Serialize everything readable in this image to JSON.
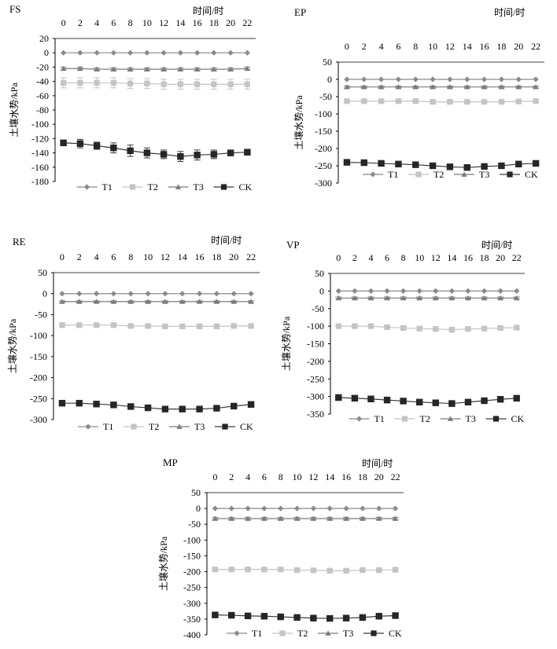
{
  "chart_data": [
    {
      "type": "line",
      "title": "FS",
      "x_title": "时间/时",
      "ylabel": "土壤水势/kPa",
      "x": [
        0,
        2,
        4,
        6,
        8,
        10,
        12,
        14,
        16,
        18,
        20,
        22
      ],
      "yticks": [
        20,
        0,
        -20,
        -40,
        -60,
        -80,
        -100,
        -120,
        -140,
        -160,
        -180
      ],
      "ylim": [
        -180,
        20
      ],
      "series": [
        {
          "name": "T1",
          "values": [
            0,
            0,
            0,
            0,
            0,
            0,
            0,
            0,
            0,
            0,
            0,
            0
          ],
          "errors": [
            0,
            0,
            0,
            0,
            0,
            0,
            0,
            0,
            0,
            0,
            0,
            0
          ]
        },
        {
          "name": "T2",
          "values": [
            -42,
            -42,
            -42,
            -42,
            -43,
            -43,
            -44,
            -44,
            -44,
            -44,
            -44,
            -44
          ],
          "errors": [
            7,
            7,
            7,
            7,
            7,
            7,
            7,
            7,
            7,
            7,
            7,
            7
          ]
        },
        {
          "name": "T3",
          "values": [
            -22,
            -22,
            -23,
            -23,
            -23,
            -23,
            -23,
            -23,
            -23,
            -23,
            -23,
            -22
          ],
          "errors": [
            2,
            2,
            2,
            2,
            2,
            2,
            2,
            2,
            2,
            2,
            2,
            2
          ]
        },
        {
          "name": "CK",
          "values": [
            -126,
            -127,
            -130,
            -133,
            -137,
            -140,
            -142,
            -145,
            -143,
            -142,
            -140,
            -139
          ],
          "errors": [
            4,
            6,
            5,
            7,
            8,
            7,
            6,
            7,
            7,
            6,
            4,
            4
          ]
        }
      ]
    },
    {
      "type": "line",
      "title": "EP",
      "x_title": "时间/时",
      "ylabel": "土壤水势/kPa",
      "x": [
        0,
        2,
        4,
        6,
        8,
        10,
        12,
        14,
        16,
        18,
        20,
        22
      ],
      "yticks": [
        50,
        0,
        -50,
        -100,
        -150,
        -200,
        -250,
        -300
      ],
      "ylim": [
        -300,
        50
      ],
      "series": [
        {
          "name": "T1",
          "values": [
            0,
            0,
            0,
            0,
            0,
            0,
            0,
            0,
            0,
            0,
            0,
            0
          ],
          "errors": [
            0,
            0,
            0,
            0,
            0,
            0,
            0,
            0,
            0,
            0,
            0,
            0
          ]
        },
        {
          "name": "T2",
          "values": [
            -63,
            -63,
            -63,
            -63,
            -63,
            -65,
            -65,
            -65,
            -65,
            -65,
            -64,
            -63
          ],
          "errors": [
            3,
            3,
            3,
            3,
            3,
            3,
            3,
            3,
            3,
            3,
            3,
            3
          ]
        },
        {
          "name": "T3",
          "values": [
            -22,
            -22,
            -22,
            -22,
            -22,
            -22,
            -22,
            -22,
            -22,
            -22,
            -22,
            -22
          ],
          "errors": [
            3,
            3,
            3,
            3,
            3,
            3,
            3,
            3,
            3,
            3,
            3,
            3
          ]
        },
        {
          "name": "CK",
          "values": [
            -240,
            -241,
            -243,
            -245,
            -247,
            -250,
            -253,
            -255,
            -252,
            -250,
            -245,
            -243
          ],
          "errors": [
            3,
            3,
            3,
            3,
            3,
            3,
            3,
            3,
            3,
            3,
            3,
            3
          ]
        }
      ]
    },
    {
      "type": "line",
      "title": "RE",
      "x_title": "时间/时",
      "ylabel": "土壤水势/kPa",
      "x": [
        0,
        2,
        4,
        6,
        8,
        10,
        12,
        14,
        16,
        18,
        20,
        22
      ],
      "yticks": [
        50,
        0,
        -50,
        -100,
        -150,
        -200,
        -250,
        -300
      ],
      "ylim": [
        -300,
        50
      ],
      "series": [
        {
          "name": "T1",
          "values": [
            0,
            0,
            0,
            0,
            0,
            0,
            0,
            0,
            0,
            0,
            0,
            0
          ],
          "errors": [
            0,
            0,
            0,
            0,
            0,
            0,
            0,
            0,
            0,
            0,
            0,
            0
          ]
        },
        {
          "name": "T2",
          "values": [
            -75,
            -75,
            -75,
            -75,
            -77,
            -77,
            -78,
            -78,
            -78,
            -78,
            -77,
            -77
          ],
          "errors": [
            3,
            3,
            3,
            3,
            3,
            3,
            3,
            3,
            3,
            3,
            3,
            3
          ]
        },
        {
          "name": "T3",
          "values": [
            -19,
            -19,
            -19,
            -19,
            -19,
            -19,
            -19,
            -19,
            -19,
            -19,
            -19,
            -19
          ],
          "errors": [
            2,
            2,
            2,
            2,
            2,
            2,
            2,
            2,
            2,
            2,
            2,
            2
          ]
        },
        {
          "name": "CK",
          "values": [
            -261,
            -261,
            -263,
            -265,
            -269,
            -272,
            -275,
            -275,
            -275,
            -273,
            -268,
            -264
          ],
          "errors": [
            2,
            2,
            2,
            2,
            2,
            3,
            2,
            2,
            2,
            3,
            3,
            3
          ]
        }
      ]
    },
    {
      "type": "line",
      "title": "VP",
      "x_title": "时间/时",
      "ylabel": "土壤水势/kPa",
      "x": [
        0,
        2,
        4,
        6,
        8,
        10,
        12,
        14,
        16,
        18,
        20,
        22
      ],
      "yticks": [
        50,
        0,
        -50,
        -100,
        -150,
        -200,
        -250,
        -300,
        -350
      ],
      "ylim": [
        -350,
        50
      ],
      "series": [
        {
          "name": "T1",
          "values": [
            0,
            0,
            0,
            0,
            0,
            0,
            0,
            0,
            0,
            0,
            0,
            0
          ],
          "errors": [
            0,
            0,
            0,
            0,
            0,
            0,
            0,
            0,
            0,
            0,
            0,
            0
          ]
        },
        {
          "name": "T2",
          "values": [
            -100,
            -100,
            -100,
            -103,
            -105,
            -107,
            -108,
            -110,
            -108,
            -107,
            -105,
            -104
          ],
          "errors": [
            4,
            4,
            4,
            4,
            4,
            4,
            4,
            4,
            4,
            4,
            4,
            4
          ]
        },
        {
          "name": "T3",
          "values": [
            -20,
            -20,
            -20,
            -20,
            -20,
            -20,
            -20,
            -20,
            -20,
            -20,
            -20,
            -20
          ],
          "errors": [
            3,
            3,
            3,
            3,
            3,
            3,
            3,
            3,
            3,
            3,
            3,
            3
          ]
        },
        {
          "name": "CK",
          "values": [
            -303,
            -305,
            -307,
            -310,
            -313,
            -316,
            -318,
            -320,
            -316,
            -312,
            -308,
            -305
          ],
          "errors": [
            8,
            8,
            8,
            8,
            6,
            6,
            6,
            8,
            6,
            6,
            6,
            6
          ]
        }
      ]
    },
    {
      "type": "line",
      "title": "MP",
      "x_title": "时间/时",
      "ylabel": "土壤水势/kPa",
      "x": [
        0,
        2,
        4,
        6,
        8,
        10,
        12,
        14,
        16,
        18,
        20,
        22
      ],
      "yticks": [
        50,
        0,
        -50,
        -100,
        -150,
        -200,
        -250,
        -300,
        -350,
        -400
      ],
      "ylim": [
        -400,
        50
      ],
      "series": [
        {
          "name": "T1",
          "values": [
            0,
            0,
            0,
            0,
            0,
            0,
            0,
            0,
            0,
            0,
            0,
            0
          ],
          "errors": [
            0,
            0,
            0,
            0,
            0,
            0,
            0,
            0,
            0,
            0,
            0,
            0
          ]
        },
        {
          "name": "T2",
          "values": [
            -193,
            -193,
            -193,
            -193,
            -193,
            -195,
            -196,
            -197,
            -197,
            -195,
            -195,
            -194
          ],
          "errors": [
            4,
            4,
            4,
            4,
            4,
            4,
            4,
            4,
            4,
            4,
            4,
            4
          ]
        },
        {
          "name": "T3",
          "values": [
            -32,
            -32,
            -32,
            -32,
            -32,
            -32,
            -32,
            -32,
            -32,
            -32,
            -32,
            -32
          ],
          "errors": [
            4,
            4,
            4,
            4,
            4,
            4,
            4,
            4,
            4,
            4,
            4,
            4
          ]
        },
        {
          "name": "CK",
          "values": [
            -337,
            -338,
            -340,
            -341,
            -343,
            -345,
            -347,
            -348,
            -347,
            -345,
            -341,
            -339
          ],
          "errors": [
            8,
            8,
            8,
            8,
            8,
            8,
            4,
            4,
            4,
            4,
            8,
            8
          ]
        }
      ]
    }
  ]
}
